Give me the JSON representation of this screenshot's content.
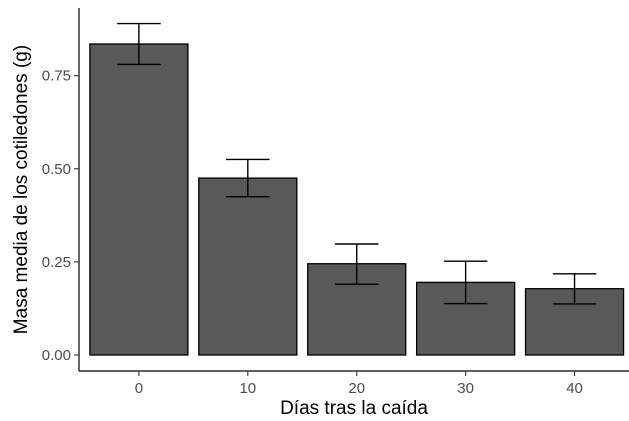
{
  "chart_data": {
    "type": "bar",
    "title": "",
    "xlabel": "Días tras la caída",
    "ylabel": "Masa media de los cotiledones (g)",
    "categories": [
      "0",
      "10",
      "20",
      "30",
      "40"
    ],
    "values": [
      0.835,
      0.475,
      0.245,
      0.195,
      0.178
    ],
    "error_lower": [
      0.78,
      0.425,
      0.19,
      0.138,
      0.137
    ],
    "error_upper": [
      0.89,
      0.525,
      0.298,
      0.252,
      0.218
    ],
    "ylim": [
      0,
      0.9
    ],
    "yticks": [
      0.0,
      0.25,
      0.5,
      0.75
    ],
    "ytick_labels": [
      "0.00",
      "0.25",
      "0.50",
      "0.75"
    ],
    "grid": false,
    "bar_color": "#595959",
    "bar_edge_color": "#000000",
    "error_bar_color": "#000000"
  }
}
